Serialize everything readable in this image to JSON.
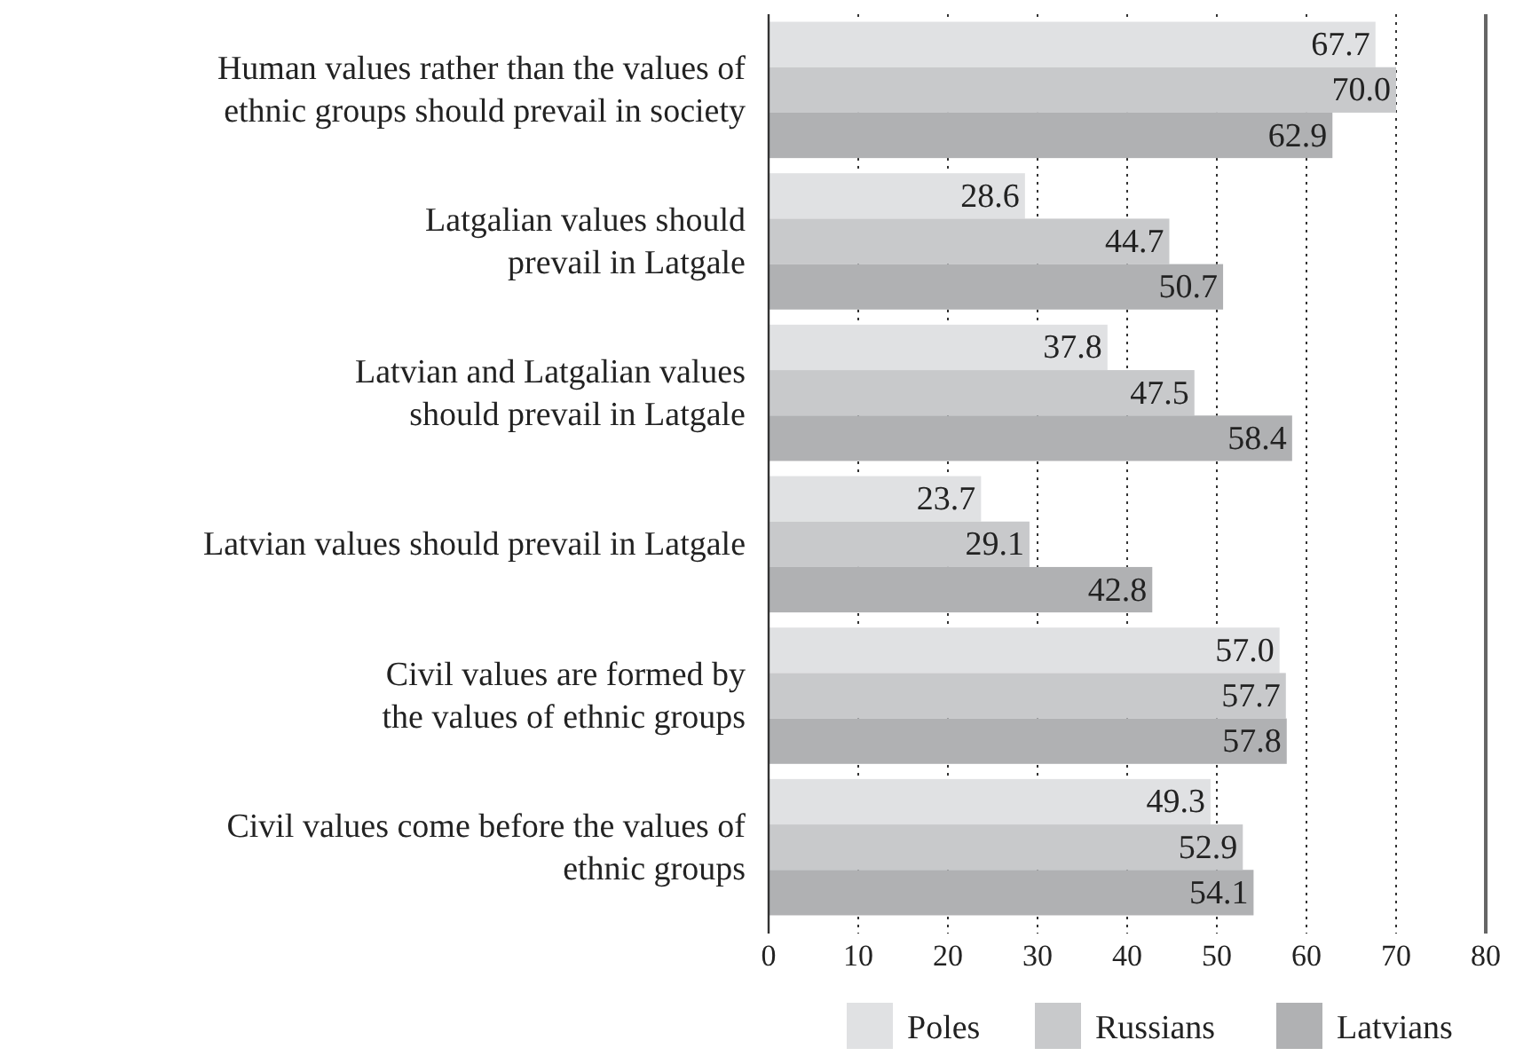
{
  "chart_data": {
    "type": "bar",
    "orientation": "horizontal",
    "categories": [
      "Human values rather than the values of\nethnic groups should prevail in society",
      "Latgalian values should\nprevail in Latgale",
      "Latvian and Latgalian values\nshould prevail in Latgale",
      "Latvian values should prevail in Latgale",
      "Civil values are formed by\nthe values of ethnic groups",
      "Civil values come before the values of\nethnic groups"
    ],
    "series": [
      {
        "name": "Poles",
        "color": "#e0e1e3",
        "values": [
          67.7,
          28.6,
          37.8,
          23.7,
          57.0,
          49.3
        ],
        "value_labels": [
          "67.7",
          "28.6",
          "37.8",
          "23.7",
          "57.0",
          "49.3"
        ]
      },
      {
        "name": "Russians",
        "color": "#c8c9cb",
        "values": [
          70.0,
          44.7,
          47.5,
          29.1,
          57.7,
          52.9
        ],
        "value_labels": [
          "70.0",
          "44.7",
          "47.5",
          "29.1",
          "57.7",
          "52.9"
        ]
      },
      {
        "name": "Latvians",
        "color": "#b0b1b3",
        "values": [
          62.9,
          50.7,
          58.4,
          42.8,
          57.8,
          54.1
        ],
        "value_labels": [
          "62.9",
          "50.7",
          "58.4",
          "42.8",
          "57.8",
          "54.1"
        ]
      }
    ],
    "xlim": [
      0,
      80
    ],
    "xticks": [
      0,
      10,
      20,
      30,
      40,
      50,
      60,
      70,
      80
    ],
    "grid": "x",
    "legend": "bottom right"
  }
}
